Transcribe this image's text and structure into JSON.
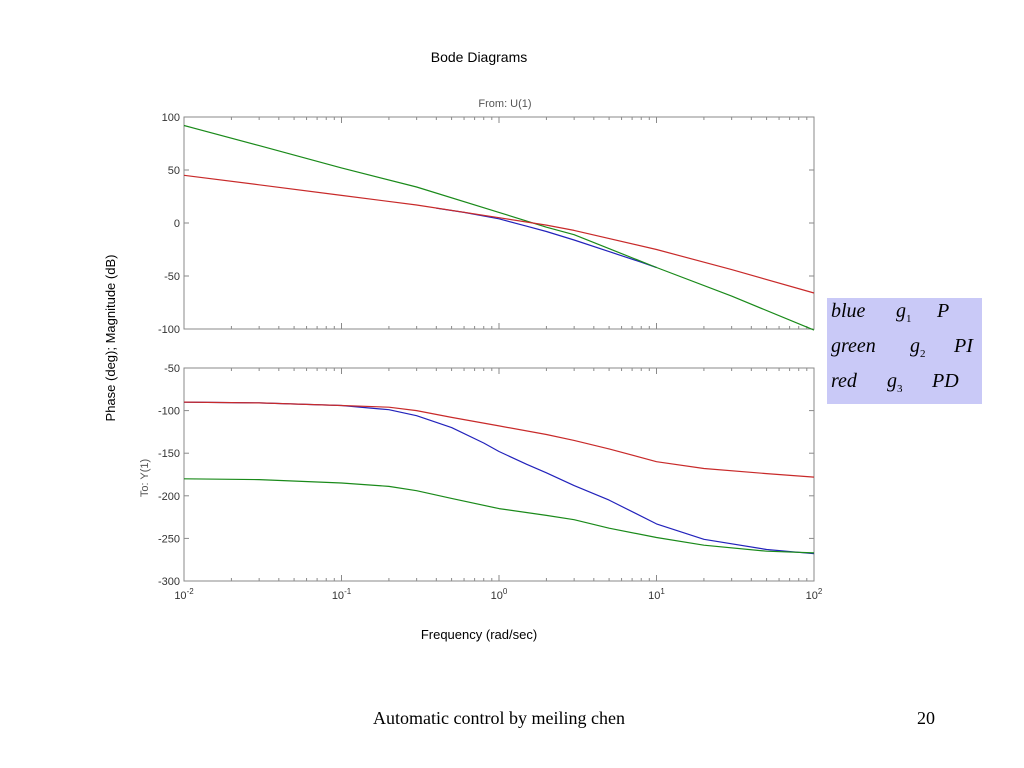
{
  "chart_data": {
    "type": "line",
    "title": "Bode Diagrams",
    "subtitle": "From: U(1)",
    "xlabel": "Frequency (rad/sec)",
    "ylabel": "Phase (deg); Magnitude (dB)",
    "ylabel_inner": "To: Y(1)",
    "x_scale": "log",
    "xlim": [
      0.01,
      100
    ],
    "x_ticks": [
      {
        "value": 0.01,
        "base": "10",
        "exp": "-2"
      },
      {
        "value": 0.1,
        "base": "10",
        "exp": "-1"
      },
      {
        "value": 1,
        "base": "10",
        "exp": "0"
      },
      {
        "value": 10,
        "base": "10",
        "exp": "1"
      },
      {
        "value": 100,
        "base": "10",
        "exp": "2"
      }
    ],
    "grid": false,
    "panels": [
      {
        "name": "magnitude",
        "ylim": [
          -100,
          100
        ],
        "y_ticks": [
          "100",
          "50",
          "0",
          "-50",
          "-100"
        ],
        "series": [
          {
            "color": "#2222bb",
            "x": [
              0.4,
              0.6,
              1,
              1.5,
              2,
              3,
              5,
              8,
              10
            ],
            "y": [
              14,
              10,
              4,
              -3,
              -8,
              -16,
              -27,
              -37,
              -42
            ]
          },
          {
            "color": "#1a8a1a",
            "x": [
              0.01,
              0.03,
              0.1,
              0.3,
              1,
              2,
              3,
              10,
              30,
              100
            ],
            "y": [
              92,
              73,
              52,
              34,
              10,
              -4,
              -11,
              -42,
              -69,
              -101
            ]
          },
          {
            "color": "#c82a2a",
            "x": [
              0.01,
              0.03,
              0.1,
              0.3,
              1,
              2,
              3,
              10,
              30,
              100
            ],
            "y": [
              45,
              36,
              26,
              17,
              5,
              -2,
              -7,
              -25,
              -44,
              -66
            ]
          }
        ]
      },
      {
        "name": "phase",
        "ylim": [
          -300,
          -50
        ],
        "y_ticks": [
          "-50",
          "-100",
          "-150",
          "-200",
          "-250",
          "-300"
        ],
        "series": [
          {
            "color": "#2222bb",
            "x": [
              0.01,
              0.03,
              0.1,
              0.2,
              0.3,
              0.5,
              0.8,
              1,
              1.5,
              2,
              3,
              5,
              10,
              20,
              50,
              100
            ],
            "y": [
              -90,
              -91,
              -94,
              -99,
              -106,
              -120,
              -138,
              -148,
              -163,
              -173,
              -188,
              -205,
              -233,
              -251,
              -263,
              -268
            ]
          },
          {
            "color": "#1a8a1a",
            "x": [
              0.01,
              0.03,
              0.1,
              0.2,
              0.3,
              0.5,
              1,
              2,
              3,
              5,
              10,
              20,
              50,
              100
            ],
            "y": [
              -180,
              -181,
              -185,
              -189,
              -194,
              -203,
              -215,
              -223,
              -228,
              -238,
              -249,
              -258,
              -265,
              -267
            ]
          },
          {
            "color": "#c82a2a",
            "x": [
              0.01,
              0.03,
              0.1,
              0.2,
              0.3,
              0.5,
              1,
              2,
              3,
              5,
              10,
              20,
              50,
              100
            ],
            "y": [
              -90,
              -91,
              -94,
              -96,
              -100,
              -108,
              -118,
              -128,
              -135,
              -145,
              -160,
              -168,
              -174,
              -178
            ]
          }
        ]
      }
    ]
  },
  "legend": {
    "rows": [
      {
        "word": "blue",
        "g": "g",
        "sub": "1",
        "ctrl": "P"
      },
      {
        "word": "green",
        "g": "g",
        "sub": "2",
        "ctrl": "PI"
      },
      {
        "word": "red",
        "g": "g",
        "sub": "3",
        "ctrl": "PD"
      }
    ]
  },
  "footer": {
    "text": "Automatic control by meiling chen",
    "page_number": "20"
  }
}
